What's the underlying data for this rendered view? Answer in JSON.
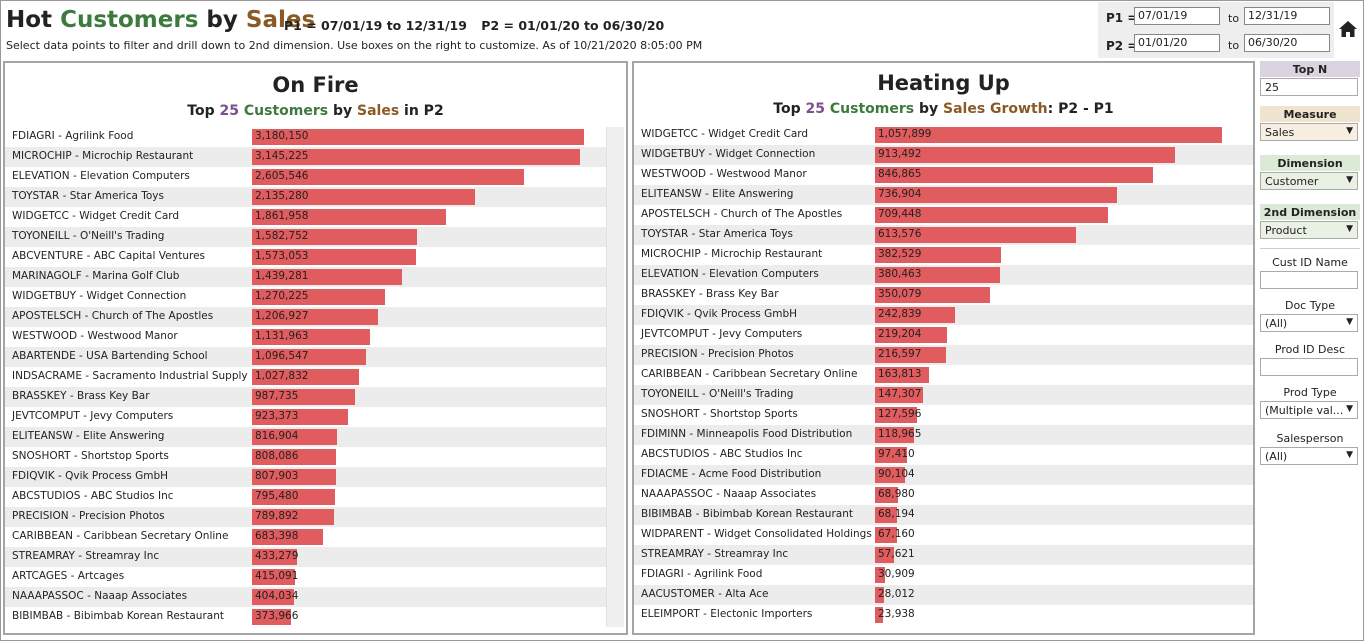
{
  "header": {
    "title_parts": [
      "Hot ",
      "Customers",
      " by ",
      "Sales"
    ],
    "p1_text": "P1 = 07/01/19 to 12/31/19",
    "p2_text": "P2 =  01/01/20 to  06/30/20",
    "subtitle": "Select data points to filter and drill down to 2nd dimension. Use boxes on the right to customize. As of  10/21/2020 8:05:00 PM"
  },
  "dates": {
    "p1_label": "P1 =",
    "p1_from": "07/01/19",
    "p1_to": "12/31/19",
    "p2_label": "P2 =",
    "p2_from": "01/01/20",
    "p2_to": "06/30/20",
    "to_label": "to"
  },
  "filters": {
    "topn_label": "Top N",
    "topn_value": "25",
    "measure_label": "Measure",
    "measure_value": "Sales",
    "dimension_label": "Dimension",
    "dimension_value": "Customer",
    "dim2_label": "2nd Dimension",
    "dim2_value": "Product",
    "custid_label": "Cust ID Name",
    "custid_value": "",
    "doctype_label": "Doc Type",
    "doctype_value": "(All)",
    "prodid_label": "Prod ID Desc",
    "prodid_value": "",
    "prodtype_label": "Prod Type",
    "prodtype_value": "(Multiple val...",
    "salesperson_label": "Salesperson",
    "salesperson_value": "(All)"
  },
  "colors": {
    "bar": "#e05c5e",
    "number_accent": "#7d4f8e",
    "customers_accent": "#3d7a3d",
    "sales_accent": "#8a5a25"
  },
  "chart_data": [
    {
      "type": "bar",
      "orientation": "horizontal",
      "title": "On Fire",
      "subtitle_parts": [
        "Top ",
        "25",
        " Customers",
        " by ",
        "Sales",
        " in P2"
      ],
      "categories": [
        "FDIAGRI  -  Agrilink Food",
        "MICROCHIP  -  Microchip Restaurant",
        "ELEVATION  -  Elevation Computers",
        "TOYSTAR  -  Star America Toys",
        "WIDGETCC  -  Widget Credit Card",
        "TOYONEILL  -  O'Neill's Trading",
        "ABCVENTURE  -  ABC Capital Ventures",
        "MARINAGOLF  -  Marina Golf Club",
        "WIDGETBUY  -  Widget Connection",
        "APOSTELSCH  -  Church of The Apostles",
        "WESTWOOD  -  Westwood Manor",
        "ABARTENDE  -  USA Bartending School",
        "INDSACRAME  -  Sacramento Industrial Supply",
        "BRASSKEY  -  Brass Key Bar",
        "JEVTCOMPUT  -  Jevy Computers",
        "ELITEANSW  -  Elite Answering",
        "SNOSHORT  -  Shortstop Sports",
        "FDIQVIK  -  Qvik Process GmbH",
        "ABCSTUDIOS  -  ABC Studios Inc",
        "PRECISION  -  Precision Photos",
        "CARIBBEAN  -  Caribbean Secretary Online",
        "STREAMRAY  -  Streamray Inc",
        "ARTCAGES  -  Artcages",
        "NAAAPASSOC  -  Naaap Associates",
        "BIBIMBAB  -  Bibimbab Korean Restaurant"
      ],
      "values": [
        3180150,
        3145225,
        2605546,
        2135280,
        1861958,
        1582752,
        1573053,
        1439281,
        1270225,
        1206927,
        1131963,
        1096547,
        1027832,
        987735,
        923373,
        816904,
        808086,
        807903,
        795480,
        789892,
        683398,
        433279,
        415091,
        404034,
        373966
      ],
      "value_labels": [
        "3,180,150",
        "3,145,225",
        "2,605,546",
        "2,135,280",
        "1,861,958",
        "1,582,752",
        "1,573,053",
        "1,439,281",
        "1,270,225",
        "1,206,927",
        "1,131,963",
        "1,096,547",
        "1,027,832",
        "987,735",
        "923,373",
        "816,904",
        "808,086",
        "807,903",
        "795,480",
        "789,892",
        "683,398",
        "433,279",
        "415,091",
        "404,034",
        "373,966"
      ],
      "xlim": [
        0,
        3400000
      ]
    },
    {
      "type": "bar",
      "orientation": "horizontal",
      "title": "Heating Up",
      "subtitle_parts": [
        "Top ",
        "25",
        " Customers",
        " by ",
        "Sales Growth",
        ": P2 - P1"
      ],
      "categories": [
        "WIDGETCC  -  Widget Credit Card",
        "WIDGETBUY  -  Widget Connection",
        "WESTWOOD  -  Westwood Manor",
        "ELITEANSW  -  Elite Answering",
        "APOSTELSCH  -  Church of The Apostles",
        "TOYSTAR  -  Star America Toys",
        "MICROCHIP  -  Microchip Restaurant",
        "ELEVATION  -  Elevation Computers",
        "BRASSKEY  -  Brass Key Bar",
        "FDIQVIK  -  Qvik Process GmbH",
        "JEVTCOMPUT  -  Jevy Computers",
        "PRECISION  -  Precision Photos",
        "CARIBBEAN  -  Caribbean Secretary Online",
        "TOYONEILL  -  O'Neill's Trading",
        "SNOSHORT  -  Shortstop Sports",
        "FDIMINN  -  Minneapolis Food Distribution",
        "ABCSTUDIOS  -  ABC Studios Inc",
        "FDIACME  -  Acme Food Distribution",
        "NAAAPASSOC  -  Naaap Associates",
        "BIBIMBAB  -  Bibimbab Korean Restaurant",
        "WIDPARENT  -  Widget Consolidated Holdings",
        "STREAMRAY  -  Streamray Inc",
        "FDIAGRI  -  Agrilink Food",
        "AACUSTOMER  -  Alta Ace",
        "ELEIMPORT  -  Electonic Importers"
      ],
      "values": [
        1057899,
        913492,
        846865,
        736904,
        709448,
        613576,
        382529,
        380463,
        350079,
        242839,
        219204,
        216597,
        163813,
        147307,
        127596,
        118965,
        97410,
        90104,
        68980,
        68194,
        67160,
        57621,
        30909,
        28012,
        23938
      ],
      "value_labels": [
        "1,057,899",
        "913,492",
        "846,865",
        "736,904",
        "709,448",
        "613,576",
        "382,529",
        "380,463",
        "350,079",
        "242,839",
        "219,204",
        "216,597",
        "163,813",
        "147,307",
        "127,596",
        "118,965",
        "97,410",
        "90,104",
        "68,980",
        "68,194",
        "67,160",
        "57,621",
        "30,909",
        "28,012",
        "23,938"
      ],
      "xlim": [
        0,
        1100000
      ]
    }
  ]
}
